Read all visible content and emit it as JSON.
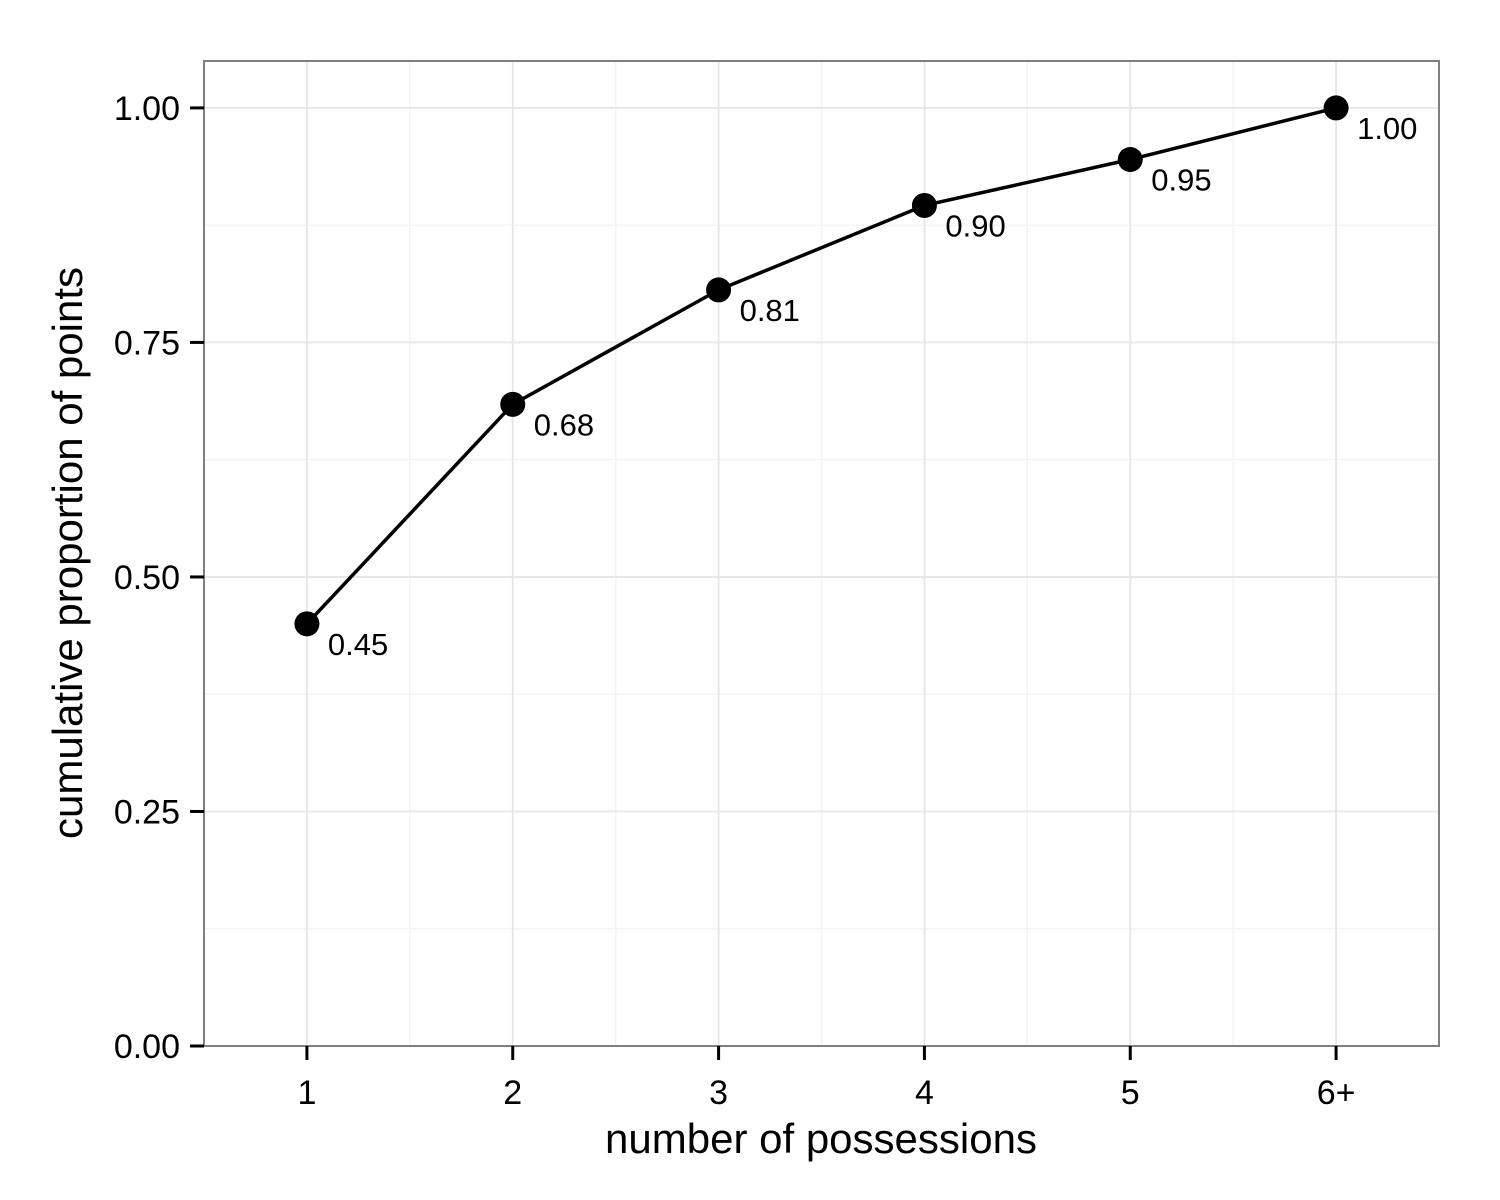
{
  "chart_data": {
    "type": "line",
    "categories": [
      "1",
      "2",
      "3",
      "4",
      "5",
      "6+"
    ],
    "values": [
      0.45,
      0.684,
      0.806,
      0.896,
      0.945,
      1.0
    ],
    "data_labels": [
      "0.45",
      "0.68",
      "0.81",
      "0.90",
      "0.95",
      "1.00"
    ],
    "xlabel": "number of possessions",
    "ylabel": "cumulative proportion of points",
    "ylim": [
      0,
      1.05
    ],
    "yticks": [
      0,
      0.25,
      0.5,
      0.75,
      1.0
    ],
    "ytick_labels": [
      "0.00",
      "0.25",
      "0.50",
      "0.75",
      "1.00"
    ],
    "grid": true,
    "legend": "none",
    "colors": {
      "series": "#000000",
      "grid": "#e6e6e6",
      "panel_border": "#7f7f7f",
      "background": "#ffffff"
    }
  }
}
